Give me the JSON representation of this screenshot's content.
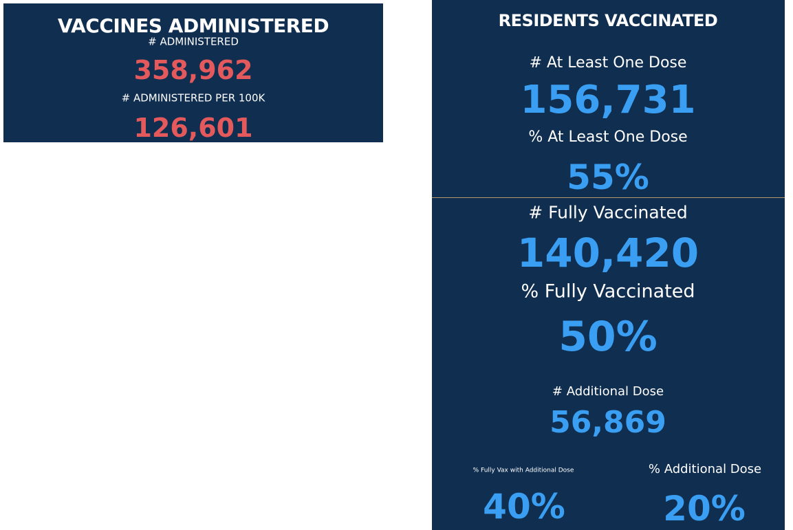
{
  "left_panel": {
    "title": "VACCINES ADMINISTERED",
    "items": [
      {
        "label": "# ADMINISTERED",
        "value": "358,962"
      },
      {
        "label": "# ADMINISTERED PER 100K",
        "value": "126,601"
      }
    ]
  },
  "right_panel": {
    "title": "RESIDENTS VACCINATED",
    "items": [
      {
        "label": "# At Least One Dose",
        "value": "156,731"
      },
      {
        "label": "% At Least One Dose",
        "value": "55%"
      },
      {
        "label": "# Fully Vaccinated",
        "value": "140,420"
      },
      {
        "label": "% Fully Vaccinated",
        "value": "50%"
      },
      {
        "label": "# Additional Dose",
        "value": "56,869"
      },
      {
        "label": "% Fully Vax with Additional Dose",
        "value": "40%"
      },
      {
        "label": "% Additional Dose",
        "value": "20%"
      }
    ]
  }
}
